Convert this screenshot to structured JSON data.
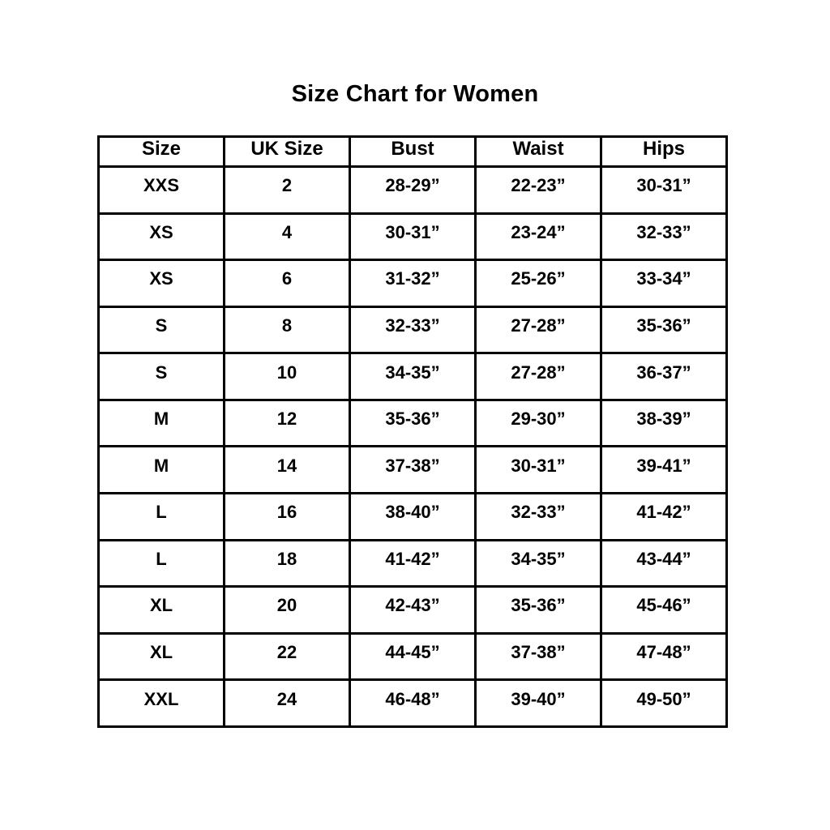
{
  "title": "Size Chart for Women",
  "table": {
    "columns": [
      "Size",
      "UK Size",
      "Bust",
      "Waist",
      "Hips"
    ],
    "rows": [
      [
        "XXS",
        "2",
        "28-29”",
        "22-23”",
        "30-31”"
      ],
      [
        "XS",
        "4",
        "30-31”",
        "23-24”",
        "32-33”"
      ],
      [
        "XS",
        "6",
        "31-32”",
        "25-26”",
        "33-34”"
      ],
      [
        "S",
        "8",
        "32-33”",
        "27-28”",
        "35-36”"
      ],
      [
        "S",
        "10",
        "34-35”",
        "27-28”",
        "36-37”"
      ],
      [
        "M",
        "12",
        "35-36”",
        "29-30”",
        "38-39”"
      ],
      [
        "M",
        "14",
        "37-38”",
        "30-31”",
        "39-41”"
      ],
      [
        "L",
        "16",
        "38-40”",
        "32-33”",
        "41-42”"
      ],
      [
        "L",
        "18",
        "41-42”",
        "34-35”",
        "43-44”"
      ],
      [
        "XL",
        "20",
        "42-43”",
        "35-36”",
        "45-46”"
      ],
      [
        "XL",
        "22",
        "44-45”",
        "37-38”",
        "47-48”"
      ],
      [
        "XXL",
        "24",
        "46-48”",
        "39-40”",
        "49-50”"
      ]
    ]
  },
  "chart_data": {
    "type": "table",
    "title": "Size Chart for Women",
    "columns": [
      "Size",
      "UK Size",
      "Bust",
      "Waist",
      "Hips"
    ],
    "rows": [
      [
        "XXS",
        "2",
        "28-29”",
        "22-23”",
        "30-31”"
      ],
      [
        "XS",
        "4",
        "30-31”",
        "23-24”",
        "32-33”"
      ],
      [
        "XS",
        "6",
        "31-32”",
        "25-26”",
        "33-34”"
      ],
      [
        "S",
        "8",
        "32-33”",
        "27-28”",
        "35-36”"
      ],
      [
        "S",
        "10",
        "34-35”",
        "27-28”",
        "36-37”"
      ],
      [
        "M",
        "12",
        "35-36”",
        "29-30”",
        "38-39”"
      ],
      [
        "M",
        "14",
        "37-38”",
        "30-31”",
        "39-41”"
      ],
      [
        "L",
        "16",
        "38-40”",
        "32-33”",
        "41-42”"
      ],
      [
        "L",
        "18",
        "41-42”",
        "34-35”",
        "43-44”"
      ],
      [
        "XL",
        "20",
        "42-43”",
        "35-36”",
        "45-46”"
      ],
      [
        "XL",
        "22",
        "44-45”",
        "37-38”",
        "47-48”"
      ],
      [
        "XXL",
        "24",
        "46-48”",
        "39-40”",
        "49-50”"
      ]
    ],
    "layout": {
      "grid": true,
      "border_color": "#000000",
      "background": "#ffffff",
      "text_color": "#000000"
    }
  },
  "colors": {
    "background": "#ffffff",
    "border": "#000000",
    "text": "#000000"
  }
}
